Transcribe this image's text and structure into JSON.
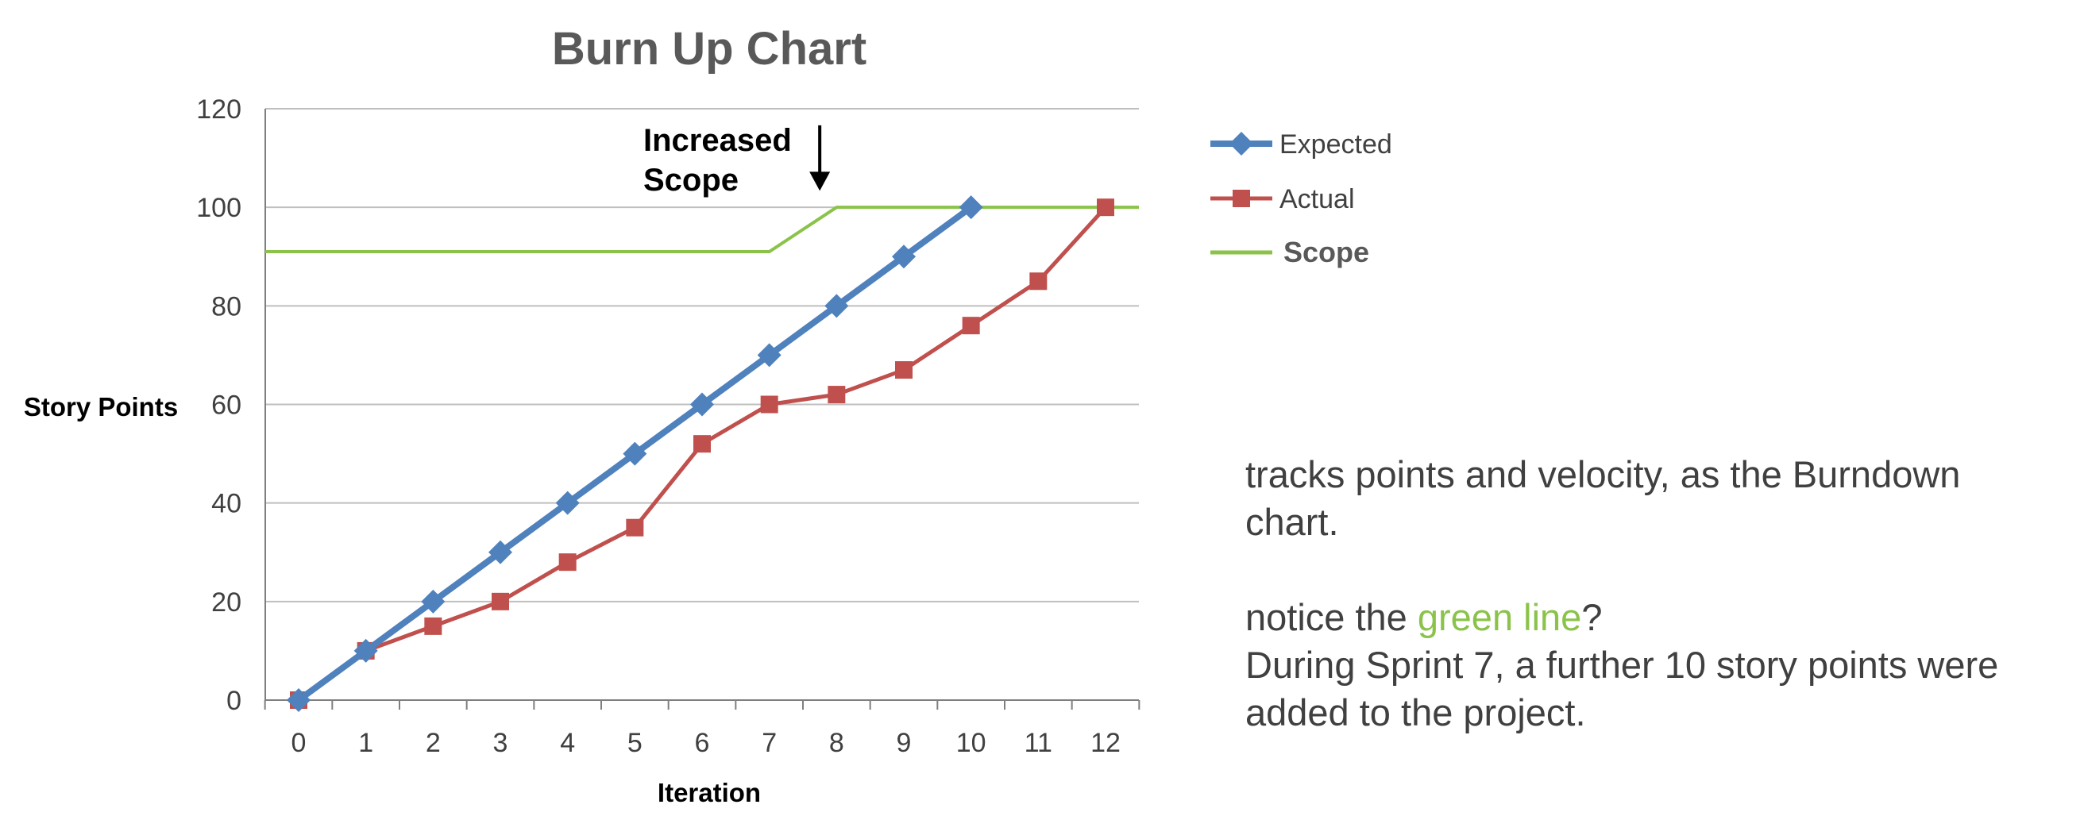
{
  "chart_data": {
    "type": "line",
    "title": "Burn Up Chart",
    "xlabel": "Iteration",
    "ylabel": "Story Points",
    "xlim": [
      0,
      12
    ],
    "ylim": [
      0,
      120
    ],
    "x_ticks": [
      "0",
      "1",
      "2",
      "3",
      "4",
      "5",
      "6",
      "7",
      "8",
      "9",
      "10",
      "11",
      "12"
    ],
    "y_ticks": [
      "0",
      "20",
      "40",
      "60",
      "80",
      "100",
      "120"
    ],
    "grid": true,
    "legend_position": "right",
    "series": [
      {
        "name": "Expected",
        "color": "#4f81bd",
        "marker": "diamond",
        "x": [
          0,
          1,
          2,
          3,
          4,
          5,
          6,
          7,
          8,
          9,
          10
        ],
        "values": [
          0,
          10,
          20,
          30,
          40,
          50,
          60,
          70,
          80,
          90,
          100
        ]
      },
      {
        "name": "Actual",
        "color": "#c0504d",
        "marker": "square",
        "x": [
          0,
          1,
          2,
          3,
          4,
          5,
          6,
          7,
          8,
          9,
          10,
          11,
          12
        ],
        "values": [
          0,
          10,
          15,
          20,
          28,
          35,
          52,
          60,
          62,
          67,
          76,
          85,
          100
        ]
      },
      {
        "name": "Scope",
        "color": "#8bc34a",
        "marker": "none",
        "x": [
          -0.5,
          7,
          8,
          12.5
        ],
        "values": [
          91,
          91,
          100,
          100
        ]
      }
    ],
    "annotation": {
      "lines": [
        "Increased",
        "Scope"
      ],
      "x": 7.75,
      "arrow_from_y": 116,
      "arrow_to_y": 104
    }
  },
  "text": {
    "para1": "tracks points and velocity, as the Burndown chart.",
    "para2_prefix": "notice the ",
    "para2_highlight": "green line",
    "para2_suffix": "?",
    "para3": "During Sprint 7, a further 10 story points were added to the project."
  }
}
